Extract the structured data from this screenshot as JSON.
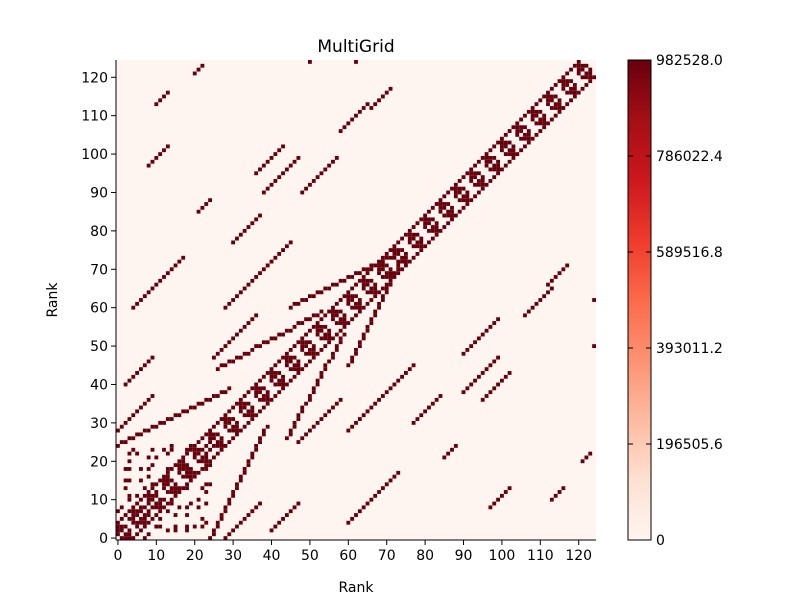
{
  "chart_data": {
    "type": "heatmap",
    "title": "MultiGrid",
    "xlabel": "Rank",
    "ylabel": "Rank",
    "x_range": [
      0,
      124
    ],
    "y_range": [
      0,
      124
    ],
    "x_ticks": [
      "0",
      "10",
      "20",
      "30",
      "40",
      "50",
      "60",
      "70",
      "80",
      "90",
      "100",
      "110",
      "120"
    ],
    "y_ticks": [
      "0",
      "10",
      "20",
      "30",
      "40",
      "50",
      "60",
      "70",
      "80",
      "90",
      "100",
      "110",
      "120"
    ],
    "grid": false,
    "colormap": "Reds",
    "colorbar": {
      "min": 0,
      "max": 982528.0,
      "tick_labels": [
        "0",
        "196505.6",
        "393011.2",
        "589516.8",
        "786022.4",
        "982528.0"
      ]
    },
    "background_value": 0,
    "cell_value": 982528.0,
    "colors": {
      "low": "#fff5f0",
      "high": "#67000d"
    },
    "nonzero_cells_note": "Symmetric communication matrix: nonzero cells lie on the main diagonal blocks (3x3 ring patterns of size-4 groups) and on off-diagonal stripes where ranks i and j exchange data between grid levels."
  }
}
